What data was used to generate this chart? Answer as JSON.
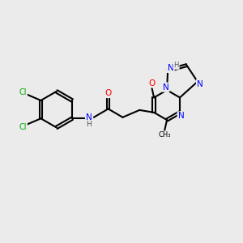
{
  "background_color": "#ebebeb",
  "bond_color": "#000000",
  "atom_colors": {
    "C": "#000000",
    "N": "#0000ff",
    "O": "#ff0000",
    "Cl": "#00aa00",
    "H": "#555555"
  },
  "figsize": [
    3.0,
    3.0
  ],
  "dpi": 100
}
